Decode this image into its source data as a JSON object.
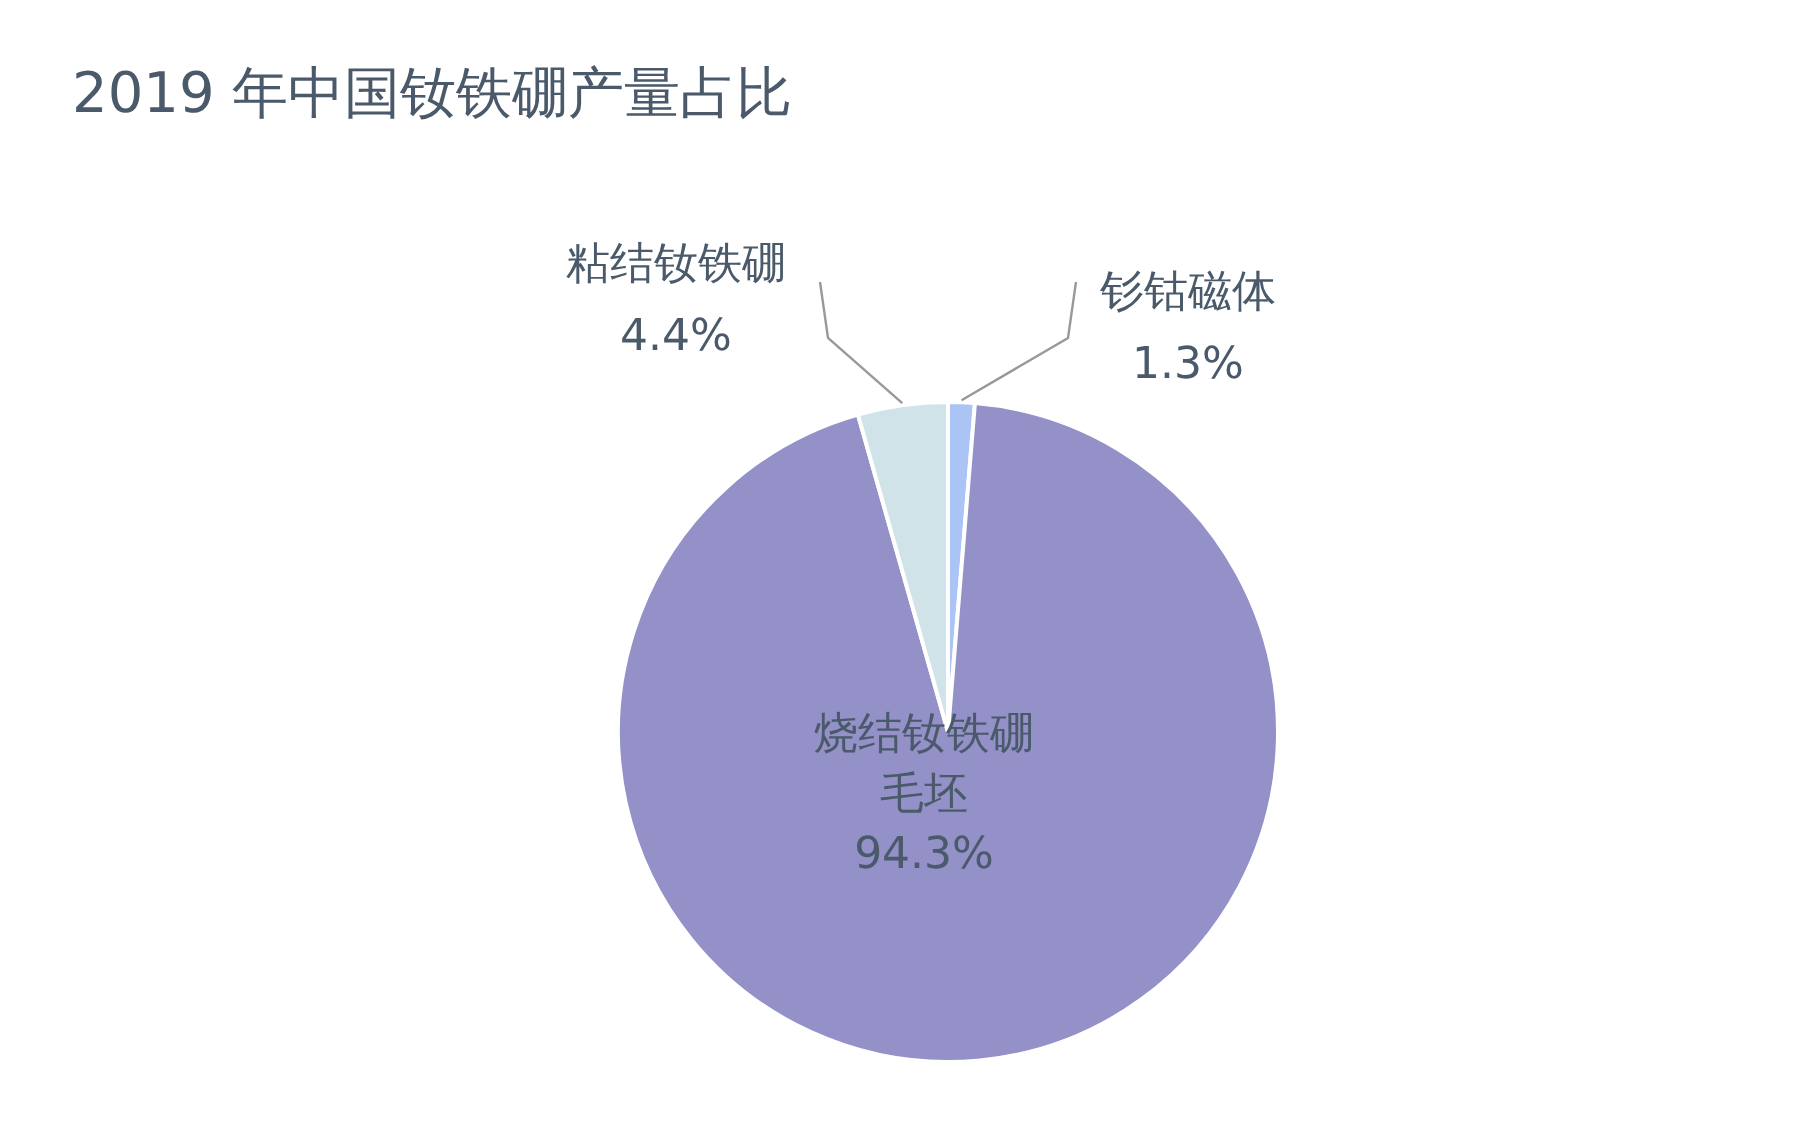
{
  "chart_data": {
    "type": "pie",
    "title": "2019 年中国钕铁硼产量占比",
    "categories": [
      "钐钴磁体",
      "烧结钕铁硼毛坯",
      "粘结钕铁硼"
    ],
    "values": [
      1.3,
      94.3,
      4.4
    ],
    "value_labels": [
      "1.3%",
      "94.3%",
      "4.4%"
    ],
    "colors": [
      "#a9c4f5",
      "#9490c8",
      "#cfe3e8"
    ],
    "legend": false
  }
}
